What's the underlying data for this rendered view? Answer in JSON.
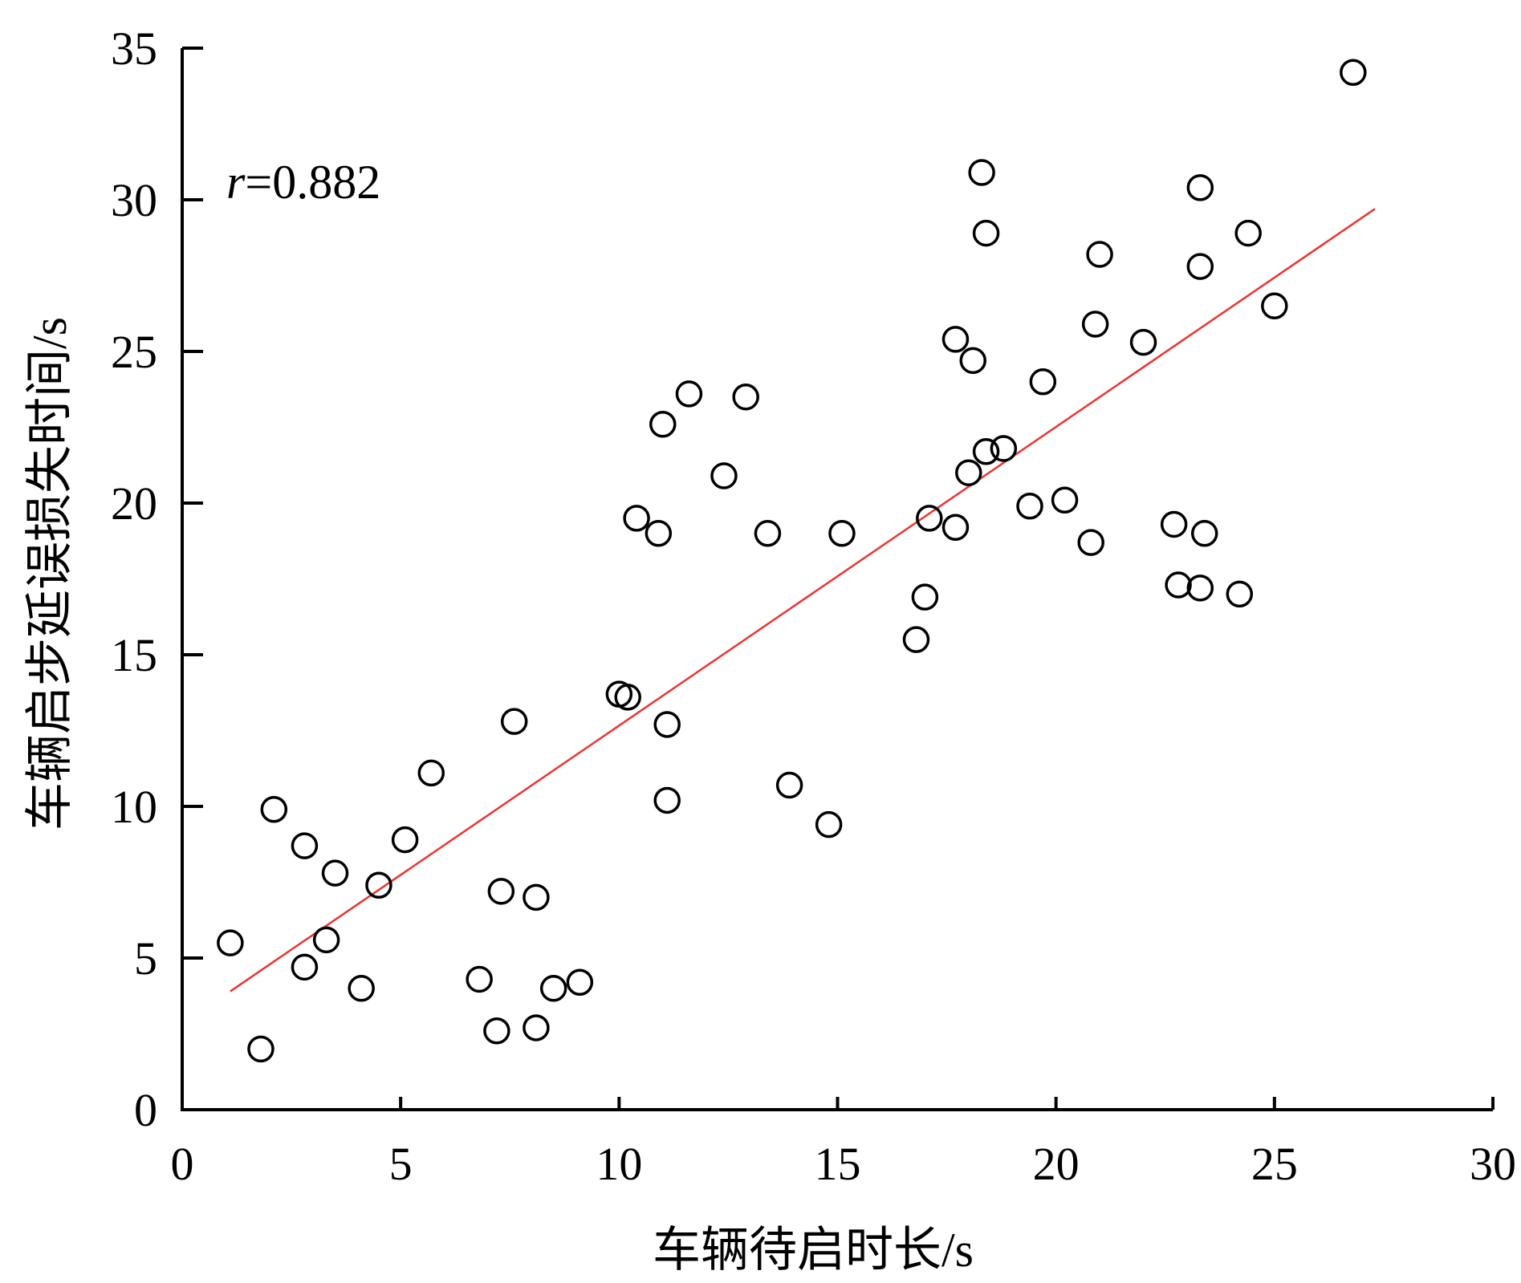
{
  "chart_data": {
    "type": "scatter",
    "xlabel": "车辆待启时长/s",
    "ylabel": "车辆启步延误损失时间/s",
    "annotation": {
      "italic": "r",
      "rest": "=0.882"
    },
    "xlim": [
      0,
      30
    ],
    "ylim": [
      0,
      35
    ],
    "xticks": [
      "0",
      "5",
      "10",
      "15",
      "20",
      "25",
      "30"
    ],
    "yticks": [
      "0",
      "5",
      "10",
      "15",
      "20",
      "25",
      "30",
      "35"
    ],
    "grid": false,
    "colors": {
      "marker_stroke": "#000000",
      "fit_line": "#ee3333",
      "axis": "#000000"
    },
    "points": [
      {
        "x": 1.1,
        "y": 5.5
      },
      {
        "x": 1.8,
        "y": 2.0
      },
      {
        "x": 2.1,
        "y": 9.9
      },
      {
        "x": 2.8,
        "y": 8.7
      },
      {
        "x": 2.8,
        "y": 4.7
      },
      {
        "x": 3.3,
        "y": 5.6
      },
      {
        "x": 3.5,
        "y": 7.8
      },
      {
        "x": 4.1,
        "y": 4.0
      },
      {
        "x": 4.5,
        "y": 7.4
      },
      {
        "x": 5.1,
        "y": 8.9
      },
      {
        "x": 5.7,
        "y": 11.1
      },
      {
        "x": 6.8,
        "y": 4.3
      },
      {
        "x": 7.2,
        "y": 2.6
      },
      {
        "x": 7.3,
        "y": 7.2
      },
      {
        "x": 7.6,
        "y": 12.8
      },
      {
        "x": 8.1,
        "y": 2.7
      },
      {
        "x": 8.1,
        "y": 7.0
      },
      {
        "x": 8.5,
        "y": 4.0
      },
      {
        "x": 9.1,
        "y": 4.2
      },
      {
        "x": 10.0,
        "y": 13.7
      },
      {
        "x": 10.2,
        "y": 13.6
      },
      {
        "x": 10.4,
        "y": 19.5
      },
      {
        "x": 10.9,
        "y": 19.0
      },
      {
        "x": 11.0,
        "y": 22.6
      },
      {
        "x": 11.1,
        "y": 12.7
      },
      {
        "x": 11.1,
        "y": 10.2
      },
      {
        "x": 11.6,
        "y": 23.6
      },
      {
        "x": 12.4,
        "y": 20.9
      },
      {
        "x": 12.9,
        "y": 23.5
      },
      {
        "x": 13.4,
        "y": 19.0
      },
      {
        "x": 13.9,
        "y": 10.7
      },
      {
        "x": 14.8,
        "y": 9.4
      },
      {
        "x": 15.1,
        "y": 19.0
      },
      {
        "x": 16.8,
        "y": 15.5
      },
      {
        "x": 17.0,
        "y": 16.9
      },
      {
        "x": 17.1,
        "y": 19.5
      },
      {
        "x": 17.7,
        "y": 25.4
      },
      {
        "x": 17.7,
        "y": 19.2
      },
      {
        "x": 18.0,
        "y": 21.0
      },
      {
        "x": 18.1,
        "y": 24.7
      },
      {
        "x": 18.3,
        "y": 30.9
      },
      {
        "x": 18.4,
        "y": 28.9
      },
      {
        "x": 18.4,
        "y": 21.7
      },
      {
        "x": 18.8,
        "y": 21.8
      },
      {
        "x": 19.4,
        "y": 19.9
      },
      {
        "x": 19.7,
        "y": 24.0
      },
      {
        "x": 20.2,
        "y": 20.1
      },
      {
        "x": 20.8,
        "y": 18.7
      },
      {
        "x": 20.9,
        "y": 25.9
      },
      {
        "x": 21.0,
        "y": 28.2
      },
      {
        "x": 22.0,
        "y": 25.3
      },
      {
        "x": 22.7,
        "y": 19.3
      },
      {
        "x": 22.8,
        "y": 17.3
      },
      {
        "x": 23.3,
        "y": 17.2
      },
      {
        "x": 23.3,
        "y": 30.4
      },
      {
        "x": 23.3,
        "y": 27.8
      },
      {
        "x": 23.4,
        "y": 19.0
      },
      {
        "x": 24.2,
        "y": 17.0
      },
      {
        "x": 24.4,
        "y": 28.9
      },
      {
        "x": 25.0,
        "y": 26.5
      },
      {
        "x": 26.8,
        "y": 34.2
      }
    ],
    "fit_line": {
      "x": [
        1.1,
        27.3
      ],
      "y": [
        3.9,
        29.7
      ]
    }
  }
}
